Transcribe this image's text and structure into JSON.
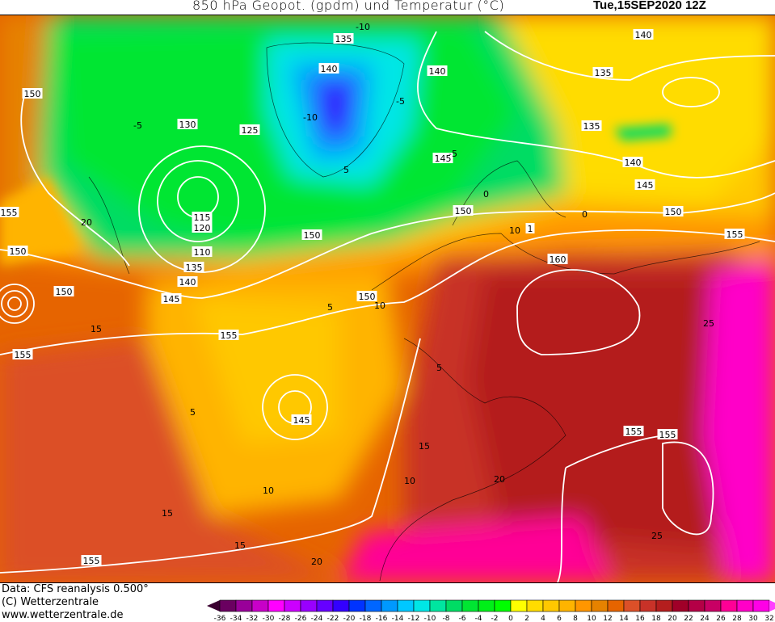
{
  "header": {
    "title": "850 hPa Geopot. (gpdm) und Temperatur (°C)",
    "valid_time": "Tue,15SEP2020 12Z"
  },
  "footer": {
    "data_source": "Data: CFS reanalysis 0.500°",
    "copyright": "(C) Wetterzentrale",
    "url": "www.wetterzentrale.de"
  },
  "colorbar": {
    "unit": "°C",
    "labels": [
      "-36",
      "-34",
      "-32",
      "-30",
      "-28",
      "-26",
      "-24",
      "-22",
      "-20",
      "-18",
      "-16",
      "-14",
      "-12",
      "-10",
      "-8",
      "-6",
      "-4",
      "-2",
      "0",
      "2",
      "4",
      "6",
      "8",
      "10",
      "12",
      "14",
      "16",
      "18",
      "20",
      "22",
      "24",
      "26",
      "28",
      "30",
      "32"
    ],
    "below_color": "#3a0030",
    "above_color": "#ff40ff",
    "colors": [
      "#6a0060",
      "#990099",
      "#c800c8",
      "#ff00ff",
      "#cc00ff",
      "#9900ff",
      "#6600ff",
      "#3300ff",
      "#0033ff",
      "#0066ff",
      "#0099ff",
      "#00c8ff",
      "#00e6e6",
      "#00e6a0",
      "#00dc64",
      "#00e632",
      "#00f018",
      "#00ff00",
      "#ffff00",
      "#ffdc00",
      "#ffc800",
      "#ffb400",
      "#ff9600",
      "#e68200",
      "#e66400",
      "#dc5028",
      "#c83228",
      "#b41e1e",
      "#a00028",
      "#b40046",
      "#c80064",
      "#ff0096",
      "#ff00c8",
      "#ff00e6"
    ]
  },
  "geopotential_labels": [
    "135",
    "140",
    "140",
    "140",
    "135",
    "135",
    "140",
    "145",
    "150",
    "155",
    "150",
    "130",
    "125",
    "145",
    "150",
    "150",
    "115",
    "120",
    "110",
    "135",
    "140",
    "145",
    "150",
    "150",
    "155",
    "155",
    "155",
    "150",
    "145",
    "160",
    "155",
    "155",
    "155",
    "1"
  ],
  "temperature_labels": [
    "-10",
    "-5",
    "-10",
    "-5",
    "0",
    "5",
    "0",
    "-5",
    "5",
    "10",
    "5",
    "10",
    "15",
    "10",
    "15",
    "15",
    "20",
    "20",
    "25",
    "25",
    "20",
    "15",
    "10",
    "5"
  ]
}
